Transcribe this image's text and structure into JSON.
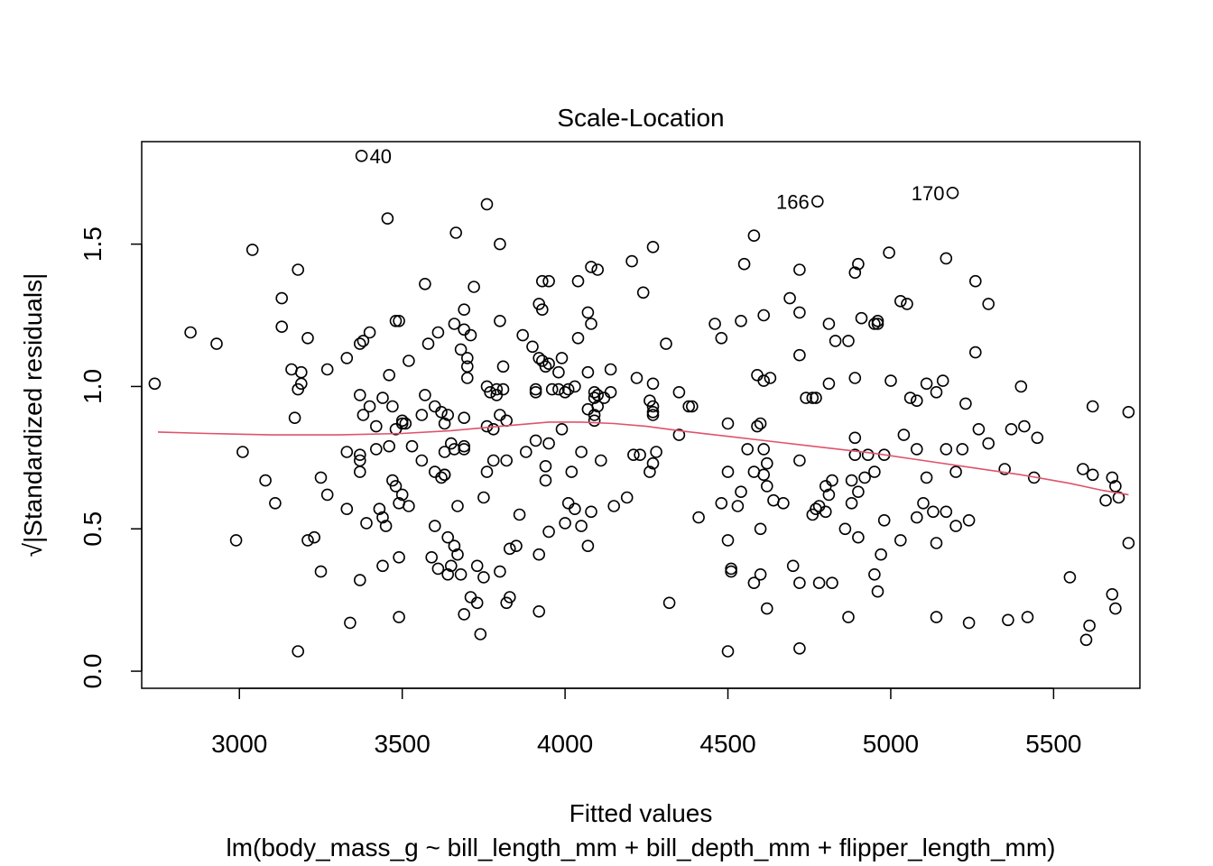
{
  "chart_data": {
    "type": "scatter",
    "title": "Scale-Location",
    "xlabel": "Fitted values",
    "subtitle": "lm(body_mass_g ~ bill_length_mm + bill_depth_mm + flipper_length_mm)",
    "ylabel": "√|Standardized residuals|",
    "xlim": [
      2700,
      5765
    ],
    "ylim": [
      -0.06,
      1.86
    ],
    "x_ticks": [
      3000,
      3500,
      4000,
      4500,
      5000,
      5500
    ],
    "y_ticks": [
      0.0,
      0.5,
      1.0,
      1.5
    ],
    "x_tick_labels": [
      "3000",
      "3500",
      "4000",
      "4500",
      "5000",
      "5500"
    ],
    "y_tick_labels": [
      "0.0",
      "0.5",
      "1.0",
      "1.5"
    ],
    "grid": false,
    "points": [
      [
        3375,
        1.81
      ],
      [
        4775,
        1.65
      ],
      [
        5190,
        1.68
      ],
      [
        3455,
        1.59
      ],
      [
        3760,
        1.64
      ],
      [
        3040,
        1.48
      ],
      [
        3665,
        1.54
      ],
      [
        3800,
        1.5
      ],
      [
        4580,
        1.53
      ],
      [
        4270,
        1.49
      ],
      [
        4995,
        1.47
      ],
      [
        4205,
        1.44
      ],
      [
        4080,
        1.42
      ],
      [
        4100,
        1.41
      ],
      [
        3180,
        1.41
      ],
      [
        4550,
        1.43
      ],
      [
        4720,
        1.41
      ],
      [
        4900,
        1.43
      ],
      [
        4890,
        1.4
      ],
      [
        5170,
        1.45
      ],
      [
        5260,
        1.37
      ],
      [
        3570,
        1.36
      ],
      [
        3720,
        1.35
      ],
      [
        3930,
        1.37
      ],
      [
        3950,
        1.37
      ],
      [
        4040,
        1.37
      ],
      [
        4240,
        1.33
      ],
      [
        3130,
        1.31
      ],
      [
        4690,
        1.31
      ],
      [
        5030,
        1.3
      ],
      [
        5050,
        1.29
      ],
      [
        5300,
        1.29
      ],
      [
        3920,
        1.29
      ],
      [
        3930,
        1.27
      ],
      [
        4070,
        1.26
      ],
      [
        3690,
        1.27
      ],
      [
        4610,
        1.25
      ],
      [
        4720,
        1.26
      ],
      [
        2850,
        1.19
      ],
      [
        2930,
        1.15
      ],
      [
        3130,
        1.21
      ],
      [
        3210,
        1.17
      ],
      [
        3490,
        1.23
      ],
      [
        3480,
        1.23
      ],
      [
        3660,
        1.22
      ],
      [
        3690,
        1.2
      ],
      [
        3710,
        1.18
      ],
      [
        3800,
        1.23
      ],
      [
        4080,
        1.22
      ],
      [
        4460,
        1.22
      ],
      [
        4540,
        1.23
      ],
      [
        4810,
        1.22
      ],
      [
        4960,
        1.23
      ],
      [
        4950,
        1.22
      ],
      [
        4960,
        1.22
      ],
      [
        4910,
        1.24
      ],
      [
        4480,
        1.17
      ],
      [
        3380,
        1.16
      ],
      [
        3370,
        1.15
      ],
      [
        3400,
        1.19
      ],
      [
        3580,
        1.15
      ],
      [
        3610,
        1.19
      ],
      [
        3680,
        1.13
      ],
      [
        3870,
        1.18
      ],
      [
        3900,
        1.14
      ],
      [
        3990,
        1.1
      ],
      [
        4040,
        1.17
      ],
      [
        4310,
        1.15
      ],
      [
        4830,
        1.16
      ],
      [
        4870,
        1.16
      ],
      [
        5260,
        1.12
      ],
      [
        3330,
        1.1
      ],
      [
        3520,
        1.09
      ],
      [
        3700,
        1.1
      ],
      [
        3920,
        1.1
      ],
      [
        3950,
        1.08
      ],
      [
        3940,
        1.07
      ],
      [
        3930,
        1.09
      ],
      [
        3980,
        1.05
      ],
      [
        4070,
        1.05
      ],
      [
        4140,
        1.06
      ],
      [
        4220,
        1.03
      ],
      [
        4590,
        1.04
      ],
      [
        4610,
        1.02
      ],
      [
        4630,
        1.03
      ],
      [
        4720,
        1.11
      ],
      [
        4810,
        1.01
      ],
      [
        4890,
        1.03
      ],
      [
        5000,
        1.02
      ],
      [
        5110,
        1.01
      ],
      [
        5160,
        1.02
      ],
      [
        5140,
        0.98
      ],
      [
        5400,
        1.0
      ],
      [
        2740,
        1.01
      ],
      [
        3160,
        1.06
      ],
      [
        3190,
        1.05
      ],
      [
        3190,
        1.01
      ],
      [
        3180,
        0.99
      ],
      [
        3270,
        1.06
      ],
      [
        3370,
        0.97
      ],
      [
        3460,
        1.04
      ],
      [
        3440,
        0.96
      ],
      [
        3470,
        0.93
      ],
      [
        3400,
        0.93
      ],
      [
        3380,
        0.9
      ],
      [
        3570,
        0.97
      ],
      [
        3600,
        0.93
      ],
      [
        3700,
        1.07
      ],
      [
        3700,
        1.03
      ],
      [
        3810,
        1.07
      ],
      [
        3790,
        0.99
      ],
      [
        3760,
        1.0
      ],
      [
        3770,
        0.98
      ],
      [
        3810,
        0.99
      ],
      [
        3790,
        0.97
      ],
      [
        3910,
        0.99
      ],
      [
        3910,
        0.98
      ],
      [
        3960,
        0.99
      ],
      [
        3980,
        0.99
      ],
      [
        4000,
        0.98
      ],
      [
        4010,
        0.99
      ],
      [
        4030,
        1.0
      ],
      [
        4090,
        0.98
      ],
      [
        4100,
        0.97
      ],
      [
        4090,
        0.96
      ],
      [
        4120,
        0.96
      ],
      [
        4140,
        0.98
      ],
      [
        4270,
        1.01
      ],
      [
        4260,
        0.95
      ],
      [
        4270,
        0.91
      ],
      [
        4350,
        0.98
      ],
      [
        4380,
        0.93
      ],
      [
        4390,
        0.93
      ],
      [
        4740,
        0.96
      ],
      [
        4770,
        0.96
      ],
      [
        4760,
        0.96
      ],
      [
        5060,
        0.96
      ],
      [
        5080,
        0.95
      ],
      [
        5230,
        0.94
      ],
      [
        5620,
        0.93
      ],
      [
        5730,
        0.91
      ],
      [
        3170,
        0.89
      ],
      [
        3420,
        0.86
      ],
      [
        3480,
        0.85
      ],
      [
        3500,
        0.88
      ],
      [
        3510,
        0.87
      ],
      [
        3500,
        0.87
      ],
      [
        3560,
        0.9
      ],
      [
        3620,
        0.91
      ],
      [
        3640,
        0.9
      ],
      [
        3630,
        0.87
      ],
      [
        3690,
        0.89
      ],
      [
        3760,
        0.86
      ],
      [
        3780,
        0.85
      ],
      [
        3820,
        0.88
      ],
      [
        3800,
        0.9
      ],
      [
        3990,
        0.85
      ],
      [
        4100,
        0.93
      ],
      [
        4090,
        0.9
      ],
      [
        4090,
        0.88
      ],
      [
        4070,
        0.92
      ],
      [
        4270,
        0.93
      ],
      [
        4270,
        0.9
      ],
      [
        4350,
        0.83
      ],
      [
        4500,
        0.87
      ],
      [
        4590,
        0.86
      ],
      [
        4600,
        0.87
      ],
      [
        4890,
        0.82
      ],
      [
        5040,
        0.83
      ],
      [
        5270,
        0.85
      ],
      [
        5300,
        0.8
      ],
      [
        5370,
        0.85
      ],
      [
        5410,
        0.86
      ],
      [
        5450,
        0.82
      ],
      [
        3010,
        0.77
      ],
      [
        3330,
        0.77
      ],
      [
        3370,
        0.76
      ],
      [
        3370,
        0.74
      ],
      [
        3420,
        0.78
      ],
      [
        3460,
        0.79
      ],
      [
        3530,
        0.79
      ],
      [
        3560,
        0.74
      ],
      [
        3630,
        0.77
      ],
      [
        3650,
        0.8
      ],
      [
        3660,
        0.78
      ],
      [
        3690,
        0.79
      ],
      [
        3690,
        0.78
      ],
      [
        3780,
        0.74
      ],
      [
        3820,
        0.74
      ],
      [
        3880,
        0.77
      ],
      [
        3910,
        0.81
      ],
      [
        3950,
        0.8
      ],
      [
        4050,
        0.77
      ],
      [
        4110,
        0.74
      ],
      [
        4210,
        0.76
      ],
      [
        4230,
        0.76
      ],
      [
        4280,
        0.77
      ],
      [
        4560,
        0.78
      ],
      [
        4610,
        0.78
      ],
      [
        4620,
        0.73
      ],
      [
        4720,
        0.74
      ],
      [
        4890,
        0.76
      ],
      [
        4930,
        0.76
      ],
      [
        4980,
        0.76
      ],
      [
        5080,
        0.78
      ],
      [
        5170,
        0.78
      ],
      [
        5220,
        0.78
      ],
      [
        5350,
        0.71
      ],
      [
        3080,
        0.67
      ],
      [
        3250,
        0.68
      ],
      [
        3370,
        0.7
      ],
      [
        3470,
        0.67
      ],
      [
        3480,
        0.65
      ],
      [
        3600,
        0.7
      ],
      [
        3620,
        0.68
      ],
      [
        3630,
        0.69
      ],
      [
        3630,
        0.69
      ],
      [
        3760,
        0.7
      ],
      [
        3940,
        0.67
      ],
      [
        3940,
        0.72
      ],
      [
        4020,
        0.7
      ],
      [
        4260,
        0.7
      ],
      [
        4270,
        0.73
      ],
      [
        4500,
        0.7
      ],
      [
        4580,
        0.7
      ],
      [
        4610,
        0.69
      ],
      [
        4800,
        0.65
      ],
      [
        4810,
        0.62
      ],
      [
        4820,
        0.67
      ],
      [
        4880,
        0.67
      ],
      [
        4900,
        0.63
      ],
      [
        4920,
        0.68
      ],
      [
        4950,
        0.7
      ],
      [
        5110,
        0.68
      ],
      [
        5200,
        0.7
      ],
      [
        5440,
        0.68
      ],
      [
        5590,
        0.71
      ],
      [
        5620,
        0.69
      ],
      [
        5680,
        0.68
      ],
      [
        5690,
        0.65
      ],
      [
        5700,
        0.61
      ],
      [
        3110,
        0.59
      ],
      [
        3270,
        0.62
      ],
      [
        3330,
        0.57
      ],
      [
        3430,
        0.57
      ],
      [
        3440,
        0.54
      ],
      [
        3450,
        0.51
      ],
      [
        3500,
        0.62
      ],
      [
        3490,
        0.59
      ],
      [
        3520,
        0.58
      ],
      [
        3600,
        0.51
      ],
      [
        3640,
        0.47
      ],
      [
        3660,
        0.44
      ],
      [
        3670,
        0.58
      ],
      [
        3750,
        0.61
      ],
      [
        3860,
        0.55
      ],
      [
        3950,
        0.49
      ],
      [
        4010,
        0.59
      ],
      [
        4030,
        0.57
      ],
      [
        4050,
        0.51
      ],
      [
        4080,
        0.56
      ],
      [
        4150,
        0.58
      ],
      [
        4190,
        0.61
      ],
      [
        4410,
        0.54
      ],
      [
        4480,
        0.59
      ],
      [
        4530,
        0.58
      ],
      [
        4540,
        0.63
      ],
      [
        4620,
        0.65
      ],
      [
        4640,
        0.6
      ],
      [
        4670,
        0.59
      ],
      [
        4760,
        0.55
      ],
      [
        4770,
        0.57
      ],
      [
        4780,
        0.58
      ],
      [
        4800,
        0.56
      ],
      [
        4860,
        0.5
      ],
      [
        4880,
        0.59
      ],
      [
        4980,
        0.53
      ],
      [
        5030,
        0.46
      ],
      [
        5080,
        0.54
      ],
      [
        5100,
        0.59
      ],
      [
        5130,
        0.56
      ],
      [
        5170,
        0.56
      ],
      [
        5200,
        0.51
      ],
      [
        5240,
        0.53
      ],
      [
        5660,
        0.6
      ],
      [
        2990,
        0.46
      ],
      [
        3210,
        0.46
      ],
      [
        3230,
        0.47
      ],
      [
        3370,
        0.32
      ],
      [
        3390,
        0.52
      ],
      [
        3440,
        0.37
      ],
      [
        3490,
        0.4
      ],
      [
        3590,
        0.4
      ],
      [
        3610,
        0.36
      ],
      [
        3640,
        0.34
      ],
      [
        3650,
        0.37
      ],
      [
        3670,
        0.41
      ],
      [
        3680,
        0.34
      ],
      [
        3730,
        0.37
      ],
      [
        3750,
        0.33
      ],
      [
        3800,
        0.35
      ],
      [
        3830,
        0.43
      ],
      [
        3850,
        0.44
      ],
      [
        3920,
        0.41
      ],
      [
        4000,
        0.52
      ],
      [
        4070,
        0.44
      ],
      [
        4500,
        0.46
      ],
      [
        4510,
        0.36
      ],
      [
        4510,
        0.35
      ],
      [
        4580,
        0.31
      ],
      [
        4600,
        0.34
      ],
      [
        4600,
        0.5
      ],
      [
        4700,
        0.37
      ],
      [
        4720,
        0.31
      ],
      [
        4780,
        0.31
      ],
      [
        4820,
        0.31
      ],
      [
        4900,
        0.47
      ],
      [
        4950,
        0.34
      ],
      [
        4960,
        0.28
      ],
      [
        4970,
        0.41
      ],
      [
        5140,
        0.45
      ],
      [
        5730,
        0.45
      ],
      [
        3250,
        0.35
      ],
      [
        3340,
        0.17
      ],
      [
        3180,
        0.07
      ],
      [
        3490,
        0.19
      ],
      [
        3690,
        0.2
      ],
      [
        3710,
        0.26
      ],
      [
        3730,
        0.24
      ],
      [
        3740,
        0.13
      ],
      [
        3820,
        0.24
      ],
      [
        3830,
        0.26
      ],
      [
        3920,
        0.21
      ],
      [
        4320,
        0.24
      ],
      [
        4500,
        0.07
      ],
      [
        4620,
        0.22
      ],
      [
        4720,
        0.08
      ],
      [
        4870,
        0.19
      ],
      [
        5140,
        0.19
      ],
      [
        5240,
        0.17
      ],
      [
        5360,
        0.18
      ],
      [
        5420,
        0.19
      ],
      [
        5550,
        0.33
      ],
      [
        5600,
        0.11
      ],
      [
        5610,
        0.16
      ],
      [
        5680,
        0.27
      ],
      [
        5690,
        0.22
      ]
    ],
    "smoother": {
      "x": [
        2750,
        2900,
        3100,
        3300,
        3500,
        3650,
        3800,
        3950,
        4050,
        4150,
        4250,
        4350,
        4500,
        4650,
        4800,
        4950,
        5100,
        5250,
        5400,
        5550,
        5650,
        5730
      ],
      "y": [
        0.84,
        0.835,
        0.83,
        0.83,
        0.835,
        0.845,
        0.86,
        0.875,
        0.875,
        0.87,
        0.86,
        0.845,
        0.825,
        0.805,
        0.785,
        0.765,
        0.74,
        0.715,
        0.69,
        0.66,
        0.635,
        0.62
      ],
      "color": "#DF536B"
    },
    "annotations": [
      {
        "label": "40",
        "x": 3375,
        "y": 1.81,
        "side": "right"
      },
      {
        "label": "166",
        "x": 4775,
        "y": 1.65,
        "side": "left"
      },
      {
        "label": "170",
        "x": 5190,
        "y": 1.68,
        "side": "left"
      }
    ]
  }
}
